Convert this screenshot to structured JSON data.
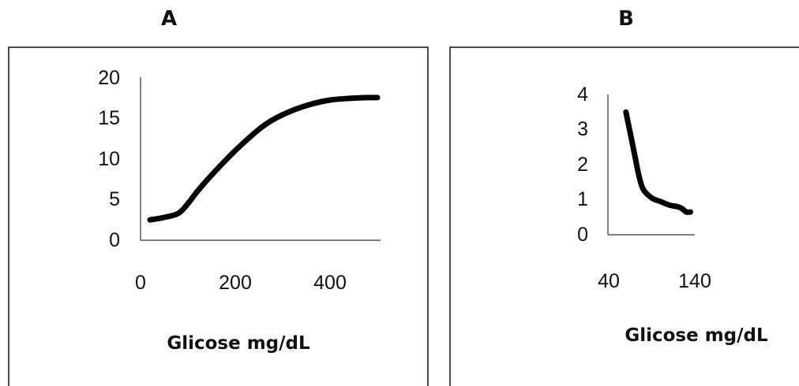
{
  "chart_data": [
    {
      "type": "line",
      "panel_label": "A",
      "xlabel": "Glicose mg/dL",
      "ylabel": "",
      "xlim": [
        0,
        500
      ],
      "ylim": [
        0,
        20
      ],
      "xticks": [
        0,
        200,
        400
      ],
      "xtick_labels": [
        "0",
        "200",
        "400"
      ],
      "yticks": [
        0,
        5,
        10,
        15,
        20
      ],
      "ytick_labels": [
        "0",
        "5",
        "10",
        "15",
        "20"
      ],
      "grid": false,
      "series": [
        {
          "x": [
            20,
            50,
            80,
            100,
            120,
            150,
            200,
            250,
            280,
            320,
            360,
            400,
            440,
            480,
            500
          ],
          "y": [
            2.5,
            2.8,
            3.3,
            4.5,
            6.0,
            8.0,
            11.0,
            13.6,
            14.8,
            15.9,
            16.7,
            17.2,
            17.4,
            17.5,
            17.5
          ],
          "color": "#000000"
        }
      ]
    },
    {
      "type": "line",
      "panel_label": "B",
      "xlabel": "Glicose mg/dL",
      "ylabel": "",
      "xlim": [
        40,
        140
      ],
      "ylim": [
        0,
        4
      ],
      "xticks": [
        40,
        140
      ],
      "xtick_labels": [
        "40",
        "140"
      ],
      "yticks": [
        0,
        1,
        2,
        3,
        4
      ],
      "ytick_labels": [
        "0",
        "1",
        "2",
        "3",
        "4"
      ],
      "grid": false,
      "series": [
        {
          "x": [
            60,
            65,
            70,
            75,
            80,
            90,
            100,
            110,
            120,
            125,
            130,
            135
          ],
          "y": [
            3.5,
            2.9,
            2.3,
            1.7,
            1.3,
            1.05,
            0.95,
            0.85,
            0.8,
            0.75,
            0.65,
            0.65
          ],
          "color": "#000000"
        }
      ]
    }
  ]
}
